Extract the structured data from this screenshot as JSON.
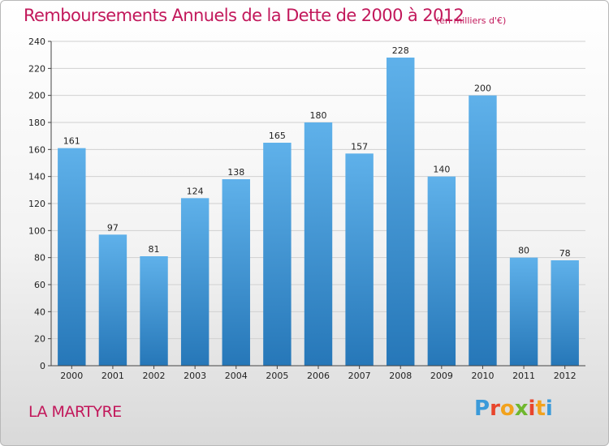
{
  "header": {
    "title": "Remboursements Annuels de la Dette de 2000 à 2012",
    "subtitle": "(en milliers d'€)"
  },
  "footer": {
    "commune": "LA MARTYRE",
    "brand": "Proxiti",
    "brand_colors": [
      "#3b9ad9",
      "#e8452c",
      "#f2a21d",
      "#6fb72e",
      "#e8452c",
      "#f2a21d",
      "#3b9ad9"
    ]
  },
  "colors": {
    "accent": "#c2185b",
    "bar_top": "#5fb1ea",
    "bar_bottom": "#2677b8",
    "grid": "#d0d0d0"
  },
  "chart_data": {
    "type": "bar",
    "title": "Remboursements Annuels de la Dette de 2000 à 2012",
    "subtitle": "(en milliers d'€)",
    "categories": [
      "2000",
      "2001",
      "2002",
      "2003",
      "2004",
      "2005",
      "2006",
      "2007",
      "2008",
      "2009",
      "2010",
      "2011",
      "2012"
    ],
    "values": [
      161,
      97,
      81,
      124,
      138,
      165,
      180,
      157,
      228,
      140,
      200,
      80,
      78
    ],
    "ylim": [
      0,
      240
    ],
    "yticks": [
      0,
      20,
      40,
      60,
      80,
      100,
      120,
      140,
      160,
      180,
      200,
      220,
      240
    ],
    "grid": true,
    "legend": "none"
  }
}
